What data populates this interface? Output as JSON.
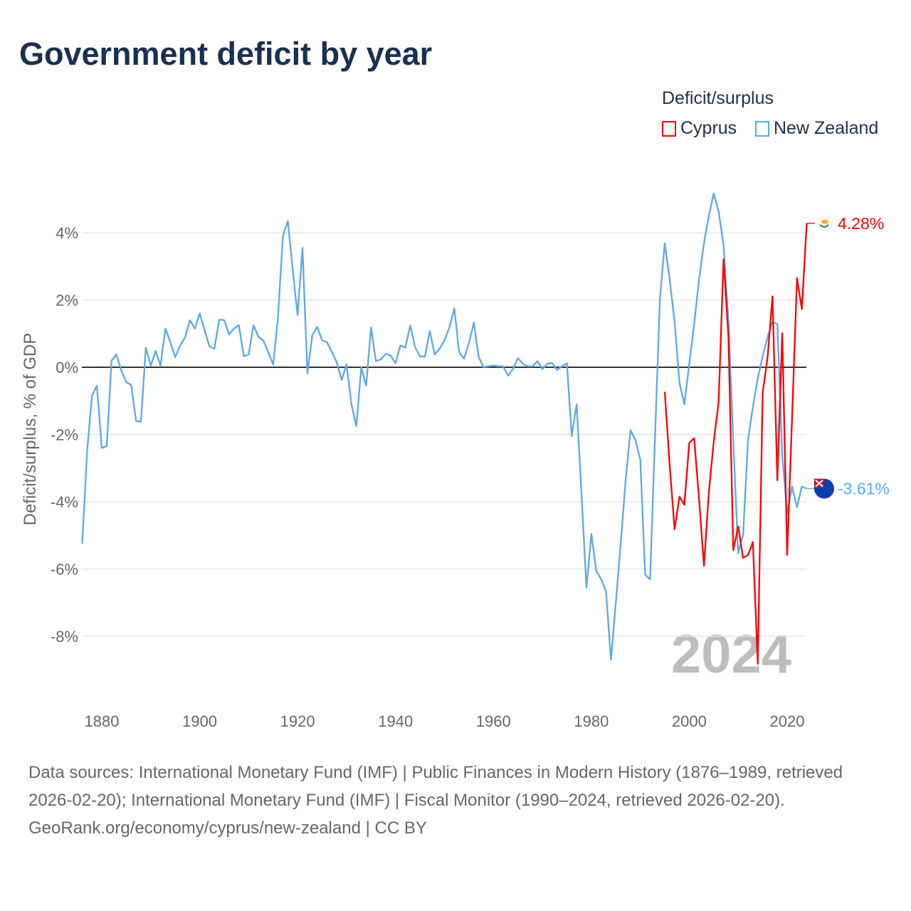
{
  "title": "Government deficit by year",
  "legend": {
    "title": "Deficit/surplus",
    "items": [
      {
        "name": "Cyprus",
        "color": "#ff0000"
      },
      {
        "name": "New Zealand",
        "color": "#5ba8ee"
      }
    ]
  },
  "footer": {
    "sources": "Data sources: International Monetary Fund (IMF) | Public Finances in Modern History (1876–1989, retrieved 2026-02-20); International Monetary Fund (IMF) | Fiscal Monitor (1990–2024, retrieved 2026-02-20).",
    "credit": "GeoRank.org/economy/cyprus/new-zealand | CC BY"
  },
  "chart_data": {
    "type": "line",
    "title": "Government deficit by year",
    "xlabel": "",
    "ylabel": "Deficit/surplus, % of GDP",
    "xlim": [
      1876,
      2024
    ],
    "ylim": [
      -9.5,
      5.5
    ],
    "x_ticks": [
      1880,
      1900,
      1920,
      1940,
      1960,
      1980,
      2000,
      2020
    ],
    "x_tick_labels": [
      "1880",
      "1900",
      "1920",
      "1940",
      "1960",
      "1980",
      "2000",
      "2020"
    ],
    "y_ticks": [
      4,
      2,
      0,
      -2,
      -4,
      -6,
      -8
    ],
    "y_tick_labels": [
      "4%",
      "2%",
      "0%",
      "-2%",
      "-4%",
      "-6%",
      "-8%"
    ],
    "grid": true,
    "legend_position": "top-right",
    "year_watermark": "2024",
    "series": [
      {
        "name": "New Zealand",
        "color": "#5ba8ee",
        "end_label": "-3.61%",
        "start_year": 1876,
        "values": [
          -5.25,
          -2.5,
          -0.85,
          -0.55,
          -2.4,
          -2.35,
          0.2,
          0.38,
          -0.1,
          -0.45,
          -0.52,
          -1.6,
          -1.62,
          0.58,
          0.05,
          0.48,
          0.05,
          1.15,
          0.75,
          0.3,
          0.65,
          0.88,
          1.4,
          1.15,
          1.6,
          1.1,
          0.62,
          0.55,
          1.42,
          1.4,
          0.98,
          1.15,
          1.25,
          0.33,
          0.38,
          1.25,
          0.9,
          0.8,
          0.45,
          0.08,
          1.5,
          3.9,
          4.35,
          2.9,
          1.55,
          3.55,
          -0.18,
          0.95,
          1.2,
          0.8,
          0.75,
          0.45,
          0.15,
          -0.38,
          0.08,
          -1.1,
          -1.75,
          0.0,
          -0.55,
          1.18,
          0.18,
          0.23,
          0.4,
          0.35,
          0.12,
          0.65,
          0.58,
          1.25,
          0.6,
          0.32,
          0.32,
          1.08,
          0.38,
          0.55,
          0.8,
          1.18,
          1.75,
          0.45,
          0.25,
          0.72,
          1.33,
          0.3,
          0.0,
          0.03,
          0.05,
          0.03,
          0.03,
          -0.25,
          -0.05,
          0.27,
          0.1,
          0.03,
          0.03,
          0.18,
          -0.05,
          0.1,
          0.13,
          -0.08,
          0.03,
          0.12,
          -2.05,
          -1.1,
          -3.8,
          -6.55,
          -4.95,
          -6.05,
          -6.3,
          -6.67,
          -8.7,
          -7.0,
          -5.25,
          -3.36,
          -1.87,
          -2.17,
          -2.74,
          -6.17,
          -6.31,
          -2.1,
          2.03,
          3.69,
          2.6,
          1.37,
          -0.47,
          -1.1,
          0.09,
          1.28,
          2.6,
          3.69,
          4.49,
          5.17,
          4.63,
          3.64,
          1.37,
          -2.2,
          -5.53,
          -4.98,
          -2.17,
          -1.18,
          -0.33,
          0.33,
          0.9,
          1.35,
          1.28,
          -2.6,
          -4.35,
          -3.55,
          -4.16,
          -3.55,
          -3.61
        ]
      },
      {
        "name": "Cyprus",
        "color": "#ff0000",
        "end_label": "4.28%",
        "start_year": 1995,
        "values": [
          -0.73,
          -2.9,
          -4.82,
          -3.85,
          -4.09,
          -2.25,
          -2.11,
          -3.92,
          -5.91,
          -3.74,
          -2.22,
          -1.04,
          3.22,
          0.9,
          -5.44,
          -4.73,
          -5.67,
          -5.58,
          -5.2,
          -8.82,
          -0.76,
          0.3,
          2.11,
          -3.36,
          1.01,
          -5.58,
          -1.5,
          2.65,
          1.73,
          4.28
        ]
      }
    ]
  }
}
